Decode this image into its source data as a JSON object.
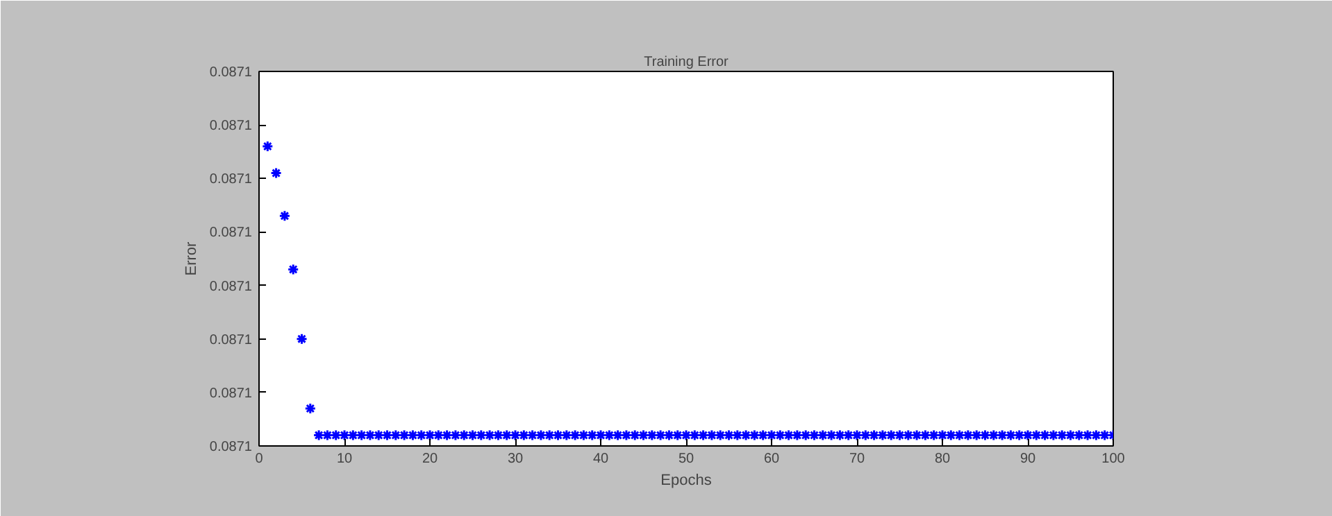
{
  "chart_data": {
    "type": "scatter",
    "title": "Training Error",
    "xlabel": "Epochs",
    "ylabel": "Error",
    "x": [
      1,
      2,
      3,
      4,
      5,
      6,
      7,
      8,
      9,
      10,
      11,
      12,
      13,
      14,
      15,
      16,
      17,
      18,
      19,
      20,
      21,
      22,
      23,
      24,
      25,
      26,
      27,
      28,
      29,
      30,
      31,
      32,
      33,
      34,
      35,
      36,
      37,
      38,
      39,
      40,
      41,
      42,
      43,
      44,
      45,
      46,
      47,
      48,
      49,
      50,
      51,
      52,
      53,
      54,
      55,
      56,
      57,
      58,
      59,
      60,
      61,
      62,
      63,
      64,
      65,
      66,
      67,
      68,
      69,
      70,
      71,
      72,
      73,
      74,
      75,
      76,
      77,
      78,
      79,
      80,
      81,
      82,
      83,
      84,
      85,
      86,
      87,
      88,
      89,
      90,
      91,
      92,
      93,
      94,
      95,
      96,
      97,
      98,
      99,
      100
    ],
    "series": [
      {
        "color": "#0000ff",
        "values": [
          0.0871056,
          0.0871051,
          0.0871043,
          0.0871033,
          0.087102,
          0.0871007,
          0.0871002,
          0.0871002,
          0.0871002,
          0.0871002,
          0.0871002,
          0.0871002,
          0.0871002,
          0.0871002,
          0.0871002,
          0.0871002,
          0.0871002,
          0.0871002,
          0.0871002,
          0.0871002,
          0.0871002,
          0.0871002,
          0.0871002,
          0.0871002,
          0.0871002,
          0.0871002,
          0.0871002,
          0.0871002,
          0.0871002,
          0.0871002,
          0.0871002,
          0.0871002,
          0.0871002,
          0.0871002,
          0.0871002,
          0.0871002,
          0.0871002,
          0.0871002,
          0.0871002,
          0.0871002,
          0.0871002,
          0.0871002,
          0.0871002,
          0.0871002,
          0.0871002,
          0.0871002,
          0.0871002,
          0.0871002,
          0.0871002,
          0.0871002,
          0.0871002,
          0.0871002,
          0.0871002,
          0.0871002,
          0.0871002,
          0.0871002,
          0.0871002,
          0.0871002,
          0.0871002,
          0.0871002,
          0.0871002,
          0.0871002,
          0.0871002,
          0.0871002,
          0.0871002,
          0.0871002,
          0.0871002,
          0.0871002,
          0.0871002,
          0.0871002,
          0.0871002,
          0.0871002,
          0.0871002,
          0.0871002,
          0.0871002,
          0.0871002,
          0.0871002,
          0.0871002,
          0.0871002,
          0.0871002,
          0.0871002,
          0.0871002,
          0.0871002,
          0.0871002,
          0.0871002,
          0.0871002,
          0.0871002,
          0.0871002,
          0.0871002,
          0.0871002,
          0.0871002,
          0.0871002,
          0.0871002,
          0.0871002,
          0.0871002,
          0.0871002,
          0.0871002,
          0.0871002,
          0.0871002,
          0.0871002
        ]
      }
    ],
    "xlim": [
      0,
      100
    ],
    "xticks": [
      0,
      10,
      20,
      30,
      40,
      50,
      60,
      70,
      80,
      90,
      100
    ],
    "ylim": [
      0.0871,
      0.087107
    ],
    "yticks": [
      {
        "value": 0.0871,
        "label": "0.0871"
      },
      {
        "value": 0.087101,
        "label": "0.0871"
      },
      {
        "value": 0.087102,
        "label": "0.0871"
      },
      {
        "value": 0.087103,
        "label": "0.0871"
      },
      {
        "value": 0.087104,
        "label": "0.0871"
      },
      {
        "value": 0.087105,
        "label": "0.0871"
      },
      {
        "value": 0.087106,
        "label": "0.0871"
      },
      {
        "value": 0.087107,
        "label": "0.0871"
      }
    ],
    "marker": "cross",
    "grid": false
  }
}
